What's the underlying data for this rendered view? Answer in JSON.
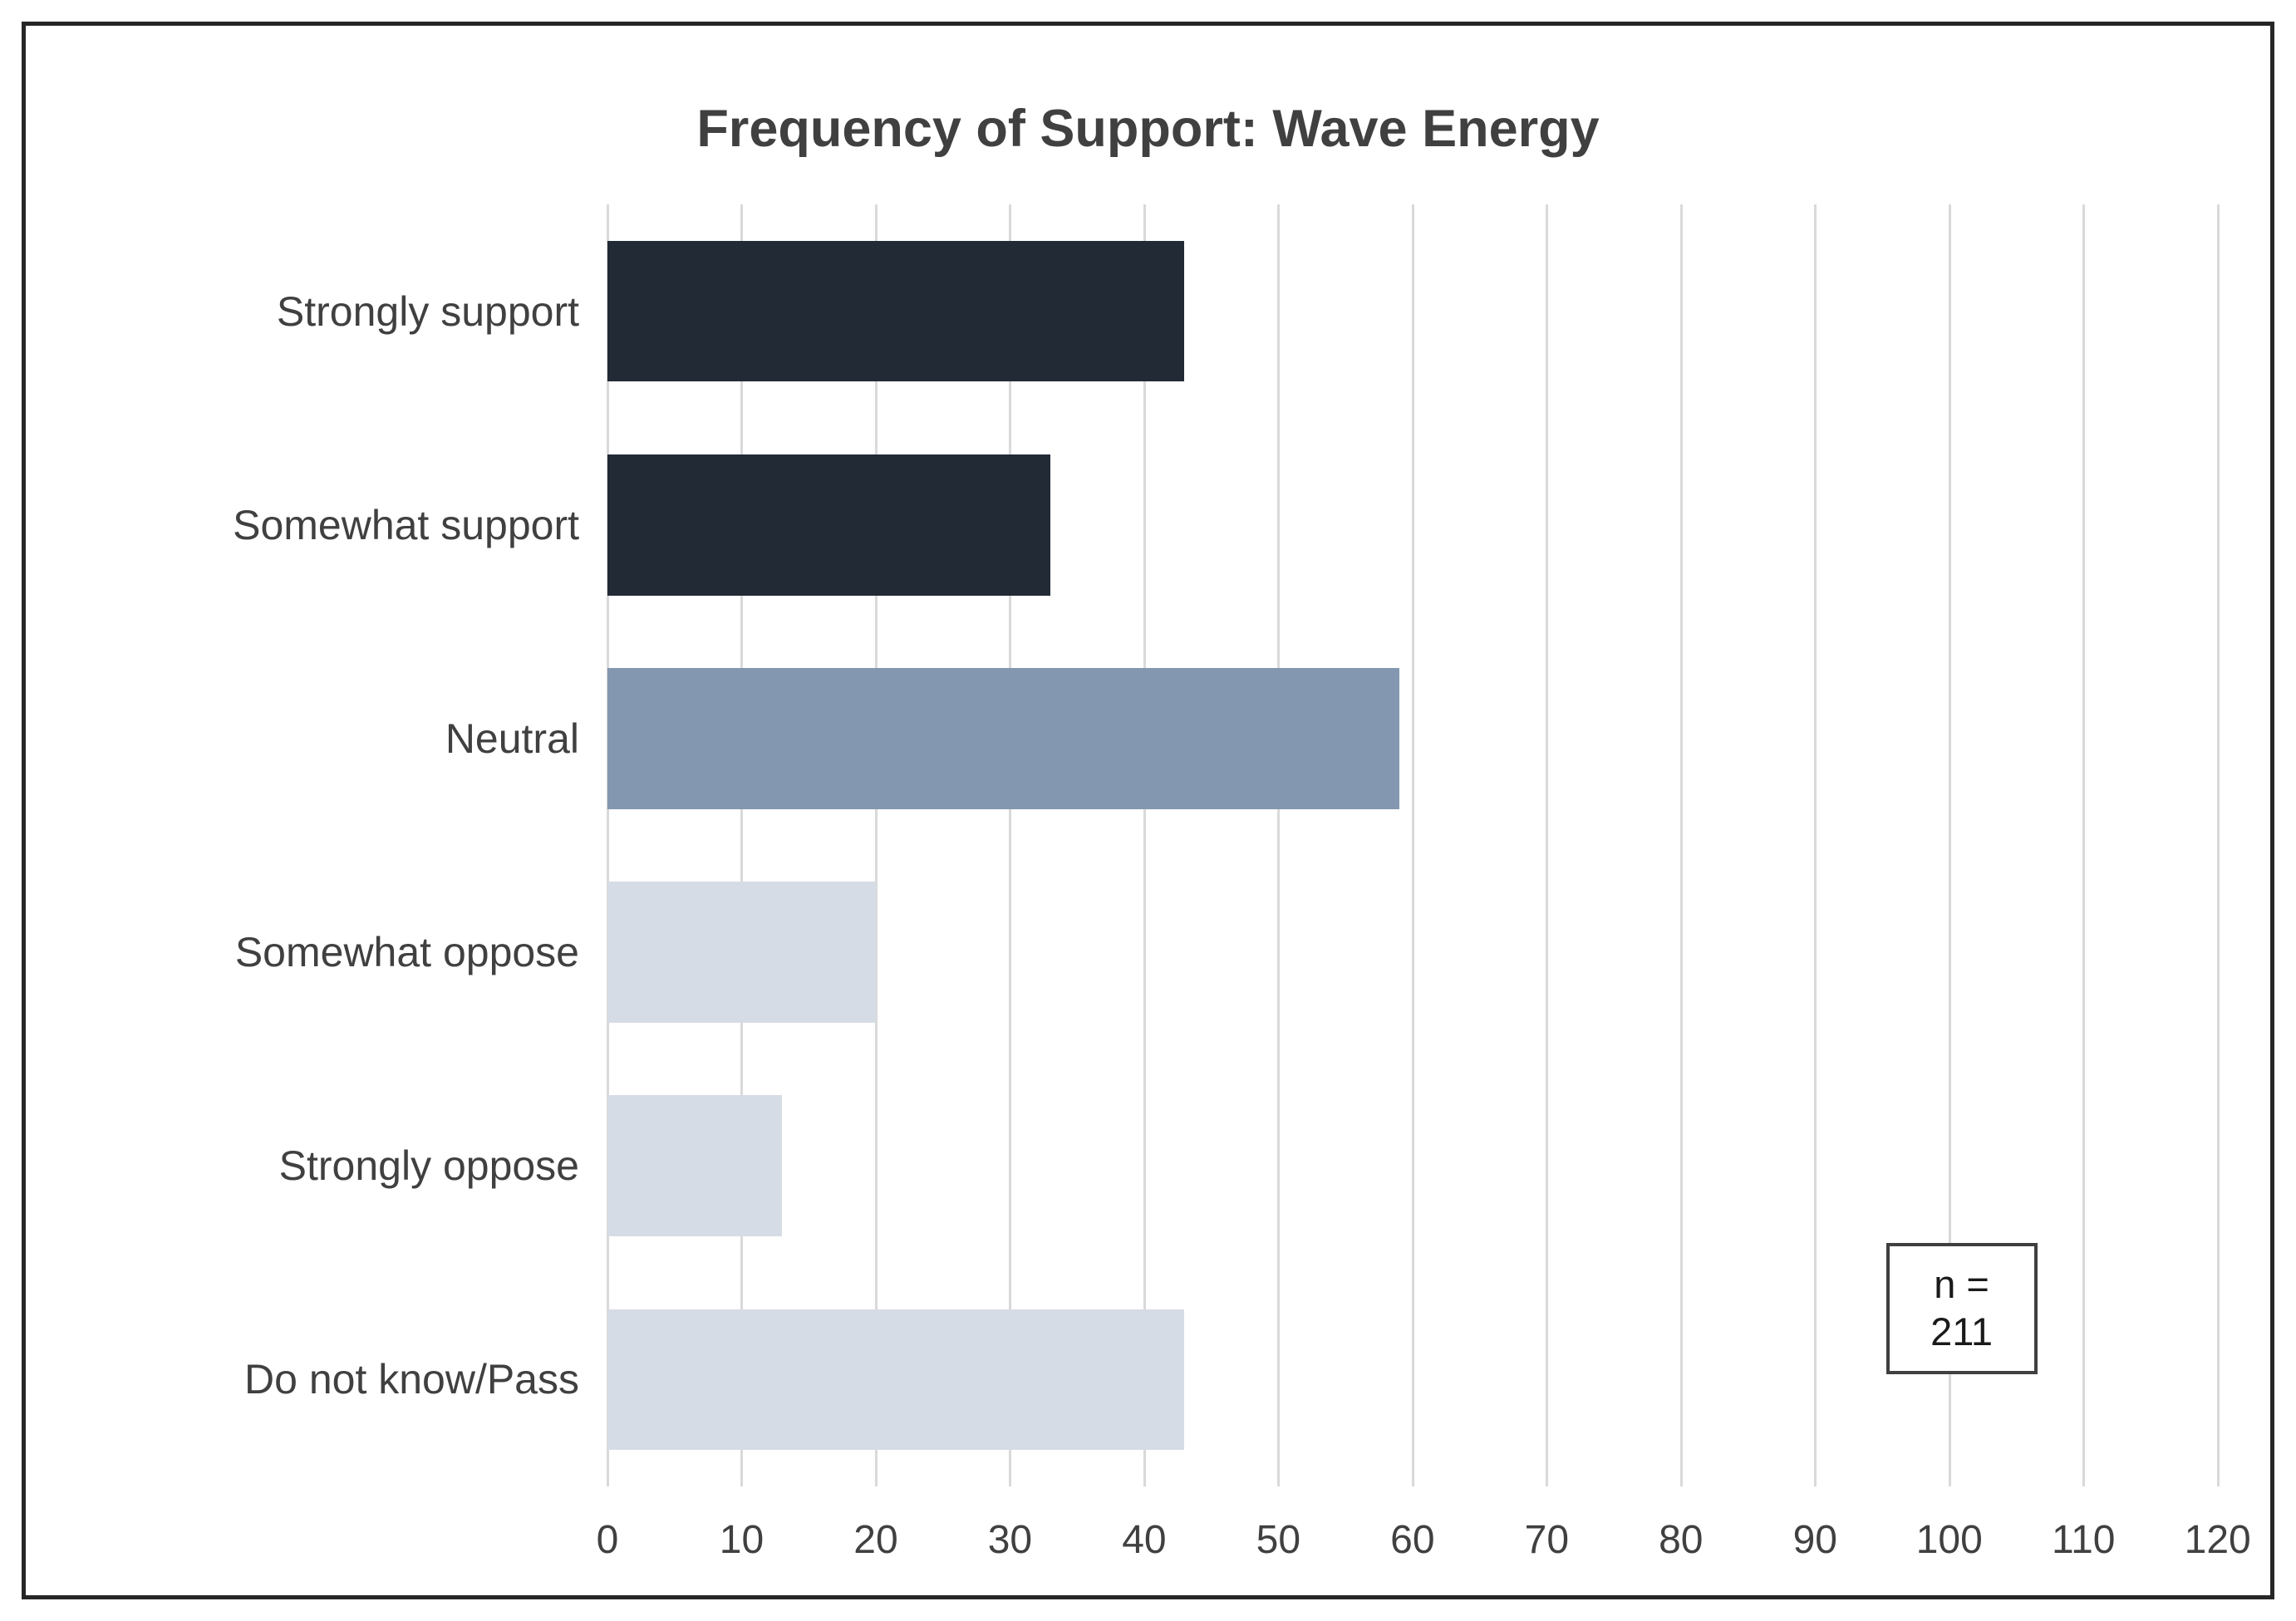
{
  "chart_data": {
    "type": "bar",
    "orientation": "horizontal",
    "title": "Frequency of Support: Wave Energy",
    "categories": [
      "Strongly support",
      "Somewhat support",
      "Neutral",
      "Somewhat oppose",
      "Strongly oppose",
      "Do not know/Pass"
    ],
    "values": [
      43,
      33,
      59,
      20,
      13,
      43
    ],
    "bar_colors": [
      "#222A36",
      "#222A36",
      "#8497B0",
      "#D6DCE5",
      "#D6DCE5",
      "#D6DCE5"
    ],
    "xlabel": "",
    "ylabel": "",
    "xlim": [
      0,
      122
    ],
    "x_ticks": [
      0,
      10,
      20,
      30,
      40,
      50,
      60,
      70,
      80,
      90,
      100,
      110,
      120
    ],
    "grid": true,
    "gridline_color": "#D9D9D9",
    "legend": "none",
    "annotation": {
      "line1": "n =",
      "line2": "211",
      "text": "n = 211"
    },
    "colors": {
      "text": "#404040",
      "frame_border": "#262626",
      "background": "#FFFFFF"
    }
  }
}
